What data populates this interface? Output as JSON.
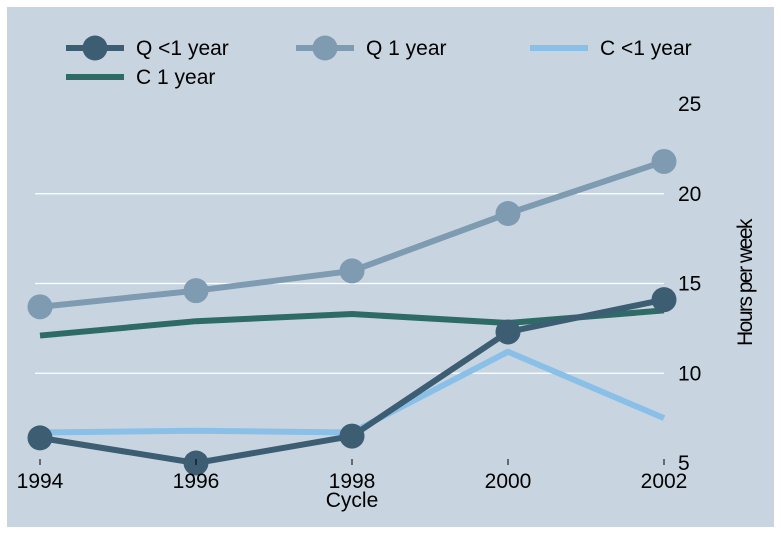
{
  "chart_data": {
    "type": "line",
    "x": [
      1994,
      1996,
      1998,
      2000,
      2002
    ],
    "xlabel": "Cycle",
    "ylabel": "Hours per week",
    "ylim": [
      5,
      25
    ],
    "yticks": [
      5,
      10,
      15,
      20,
      25
    ],
    "grid": true,
    "legend_position": "top",
    "background_color": "#c8d5e0",
    "series": [
      {
        "name": "Q <1 year",
        "values": [
          6.4,
          5.0,
          6.5,
          12.3,
          14.1
        ],
        "color": "#3d5d73",
        "markers": true
      },
      {
        "name": "Q 1 year",
        "values": [
          13.7,
          14.6,
          15.7,
          18.9,
          21.8
        ],
        "color": "#7f9bb1",
        "markers": true
      },
      {
        "name": "C <1 year",
        "values": [
          6.7,
          6.8,
          6.7,
          11.2,
          7.5
        ],
        "color": "#8ac0e8",
        "markers": false
      },
      {
        "name": "C 1 year",
        "values": [
          12.1,
          12.9,
          13.3,
          12.8,
          13.5
        ],
        "color": "#2f6b66",
        "markers": false
      }
    ]
  }
}
